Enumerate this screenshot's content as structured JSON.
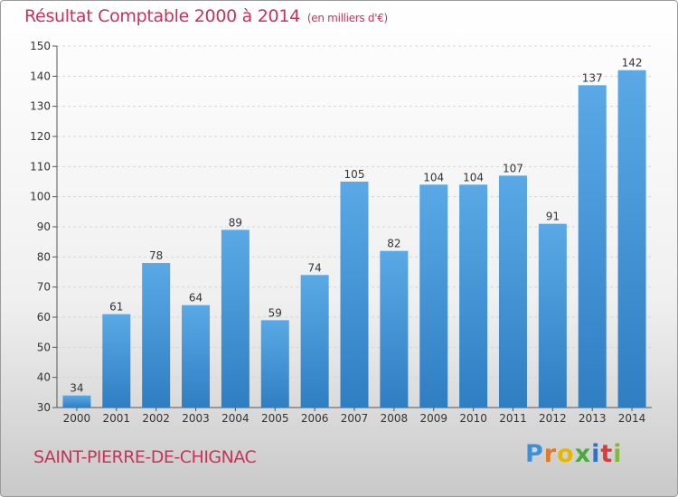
{
  "title": "Résultat Comptable 2000 à 2014",
  "subtitle": "(en milliers d'€)",
  "commune": "SAINT-PIERRE-DE-CHIGNAC",
  "brand": {
    "letters": [
      "P",
      "r",
      "o",
      "x",
      "i",
      "t",
      "i"
    ],
    "colors": [
      "#3f8fd6",
      "#e07a28",
      "#e4b800",
      "#4caa3c",
      "#2f73c2",
      "#d93c3c",
      "#7fba38"
    ]
  },
  "colors": {
    "bar_top": "#5aa9e6",
    "bar_bottom": "#2f7ec2",
    "accent": "#c8335a"
  },
  "chart_data": {
    "type": "bar",
    "categories": [
      "2000",
      "2001",
      "2002",
      "2003",
      "2004",
      "2005",
      "2006",
      "2007",
      "2008",
      "2009",
      "2010",
      "2011",
      "2012",
      "2013",
      "2014"
    ],
    "values": [
      34,
      61,
      78,
      64,
      89,
      59,
      74,
      105,
      82,
      104,
      104,
      107,
      91,
      137,
      142
    ],
    "ylim": [
      30,
      150
    ],
    "yticks": [
      30,
      40,
      50,
      60,
      70,
      80,
      90,
      100,
      110,
      120,
      130,
      140,
      150
    ],
    "grid": true,
    "data_labels": true
  }
}
